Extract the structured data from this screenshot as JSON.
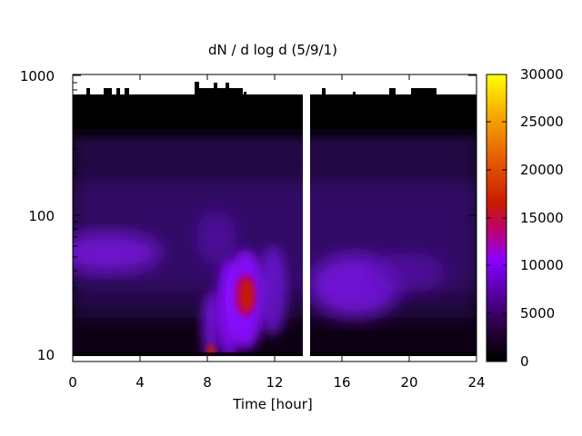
{
  "chart_data": {
    "type": "heatmap",
    "title": "dN / d log d (5/9/1)",
    "xlabel": "Time [hour]",
    "ylabel": "",
    "xlim": [
      0,
      24
    ],
    "ylim": [
      9,
      1000
    ],
    "y_scale": "log",
    "x_ticks": [
      "0",
      "4",
      "8",
      "12",
      "16",
      "20",
      "24"
    ],
    "y_ticks": [
      "10",
      "100",
      "1000"
    ],
    "colorbar": {
      "range": [
        0,
        30000
      ],
      "ticks": [
        "0",
        "5000",
        "10000",
        "15000",
        "20000",
        "25000",
        "30000"
      ],
      "palette": "black-purple-red-orange-yellow"
    },
    "data_gap_hours": [
      13.65,
      14.05
    ],
    "features": [
      {
        "label": "coarse band",
        "x_range": [
          0,
          4.5
        ],
        "y_center": 55,
        "value": 9000
      },
      {
        "label": "event",
        "x_range": [
          9.6,
          11.0
        ],
        "y_center": 27,
        "value": 17000
      },
      {
        "label": "post-gap band",
        "x_range": [
          14.0,
          19.5
        ],
        "y_center": 35,
        "value": 8500
      }
    ],
    "colors": {
      "zero": "#000000",
      "mid": "#8000ff",
      "high": "#c02000",
      "max": "#ffff00"
    }
  }
}
